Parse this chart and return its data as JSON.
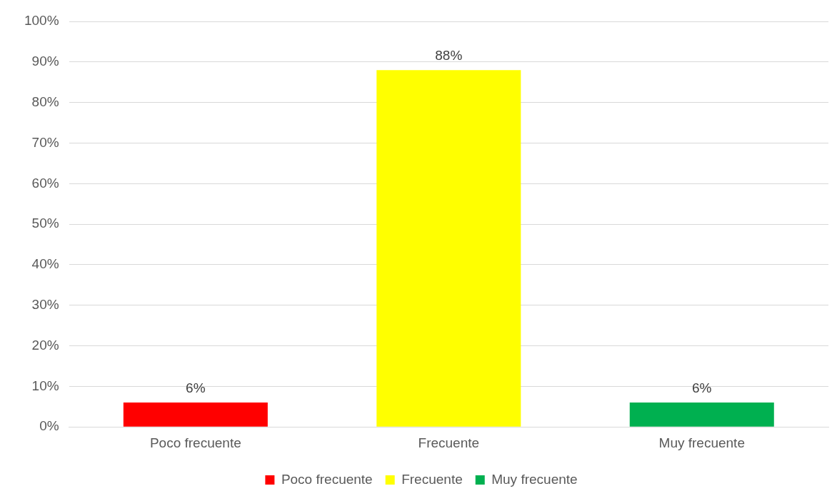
{
  "chart_data": {
    "type": "bar",
    "categories": [
      "Poco frecuente",
      "Frecuente",
      "Muy frecuente"
    ],
    "series": [
      {
        "name": "Poco frecuente",
        "color": "#ff0000",
        "values": [
          6,
          null,
          null
        ],
        "value_labels": [
          "6%",
          null,
          null
        ]
      },
      {
        "name": "Frecuente",
        "color": "#ffff00",
        "values": [
          null,
          88,
          null
        ],
        "value_labels": [
          null,
          "88%",
          null
        ]
      },
      {
        "name": "Muy frecuente",
        "color": "#00b050",
        "values": [
          null,
          null,
          6
        ],
        "value_labels": [
          null,
          null,
          "6%"
        ]
      }
    ],
    "ylim": [
      0,
      100
    ],
    "yticks": [
      {
        "value": 0,
        "label": "0%"
      },
      {
        "value": 10,
        "label": "10%"
      },
      {
        "value": 20,
        "label": "20%"
      },
      {
        "value": 30,
        "label": "30%"
      },
      {
        "value": 40,
        "label": "40%"
      },
      {
        "value": 50,
        "label": "50%"
      },
      {
        "value": 60,
        "label": "60%"
      },
      {
        "value": 70,
        "label": "70%"
      },
      {
        "value": 80,
        "label": "80%"
      },
      {
        "value": 90,
        "label": "90%"
      },
      {
        "value": 100,
        "label": "100%"
      }
    ],
    "grid": "y",
    "legend": "bottom"
  }
}
